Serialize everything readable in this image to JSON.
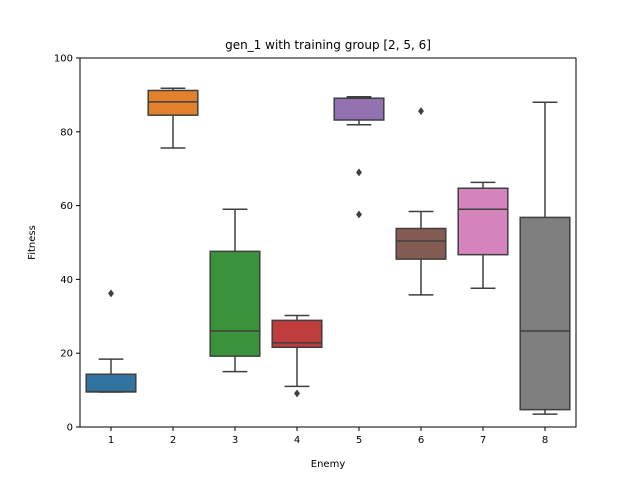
{
  "chart_data": {
    "type": "box",
    "title": "gen_1 with training group [2, 5, 6]",
    "xlabel": "Enemy",
    "ylabel": "Fitness",
    "ylim": [
      0,
      100
    ],
    "yticks": [
      0,
      20,
      40,
      60,
      80,
      100
    ],
    "grid": false,
    "categories": [
      "1",
      "2",
      "3",
      "4",
      "5",
      "6",
      "7",
      "8"
    ],
    "boxes": [
      {
        "category": "1",
        "color": "#3274a1",
        "whisker_low": 9.5,
        "q1": 9.5,
        "median": 9.6,
        "q3": 14.3,
        "whisker_high": 18.4,
        "outliers": [
          36.2
        ]
      },
      {
        "category": "2",
        "color": "#e1812c",
        "whisker_low": 75.6,
        "q1": 84.5,
        "median": 88.1,
        "q3": 91.2,
        "whisker_high": 91.8,
        "outliers": []
      },
      {
        "category": "3",
        "color": "#3a923a",
        "whisker_low": 15.0,
        "q1": 19.2,
        "median": 26.0,
        "q3": 47.6,
        "whisker_high": 59.0,
        "outliers": []
      },
      {
        "category": "4",
        "color": "#c03d3e",
        "whisker_low": 11.0,
        "q1": 21.6,
        "median": 22.8,
        "q3": 28.9,
        "whisker_high": 30.2,
        "outliers": [
          9.1
        ]
      },
      {
        "category": "5",
        "color": "#9372b2",
        "whisker_low": 81.9,
        "q1": 83.2,
        "median": 89.1,
        "q3": 89.1,
        "whisker_high": 89.5,
        "outliers": [
          69.0,
          57.6
        ]
      },
      {
        "category": "6",
        "color": "#845b53",
        "whisker_low": 35.8,
        "q1": 45.5,
        "median": 50.4,
        "q3": 53.8,
        "whisker_high": 58.4,
        "outliers": [
          85.6
        ]
      },
      {
        "category": "7",
        "color": "#d684bd",
        "whisker_low": 37.6,
        "q1": 46.7,
        "median": 59.0,
        "q3": 64.7,
        "whisker_high": 66.3,
        "outliers": []
      },
      {
        "category": "8",
        "color": "#7f7f7f",
        "whisker_low": 3.5,
        "q1": 4.7,
        "median": 26.0,
        "q3": 56.8,
        "whisker_high": 88.0,
        "outliers": []
      }
    ]
  }
}
